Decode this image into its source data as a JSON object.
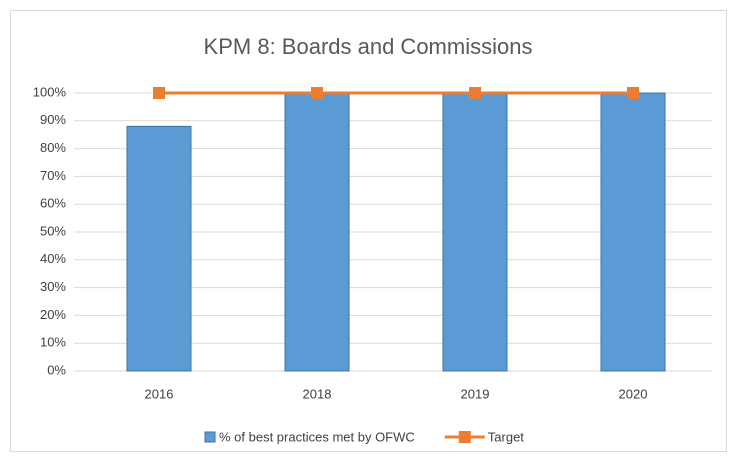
{
  "chart_data": {
    "type": "bar",
    "title": "KPM 8: Boards and Commissions",
    "categories": [
      "2016",
      "2018",
      "2019",
      "2020"
    ],
    "series": [
      {
        "name": "% of best practices met by OFWC",
        "type": "bar",
        "color": "#5b9bd5",
        "values": [
          88,
          100,
          100,
          100
        ]
      },
      {
        "name": "Target",
        "type": "line",
        "color": "#ed7d31",
        "values": [
          100,
          100,
          100,
          100
        ]
      }
    ],
    "ylim": [
      0,
      100
    ],
    "yticks": [
      {
        "value": 0,
        "label": "0%"
      },
      {
        "value": 10,
        "label": "10%"
      },
      {
        "value": 20,
        "label": "20%"
      },
      {
        "value": 30,
        "label": "30%"
      },
      {
        "value": 40,
        "label": "40%"
      },
      {
        "value": 50,
        "label": "50%"
      },
      {
        "value": 60,
        "label": "60%"
      },
      {
        "value": 70,
        "label": "70%"
      },
      {
        "value": 80,
        "label": "80%"
      },
      {
        "value": 90,
        "label": "90%"
      },
      {
        "value": 100,
        "label": "100%"
      }
    ],
    "grid": true,
    "legend": "bottom"
  }
}
